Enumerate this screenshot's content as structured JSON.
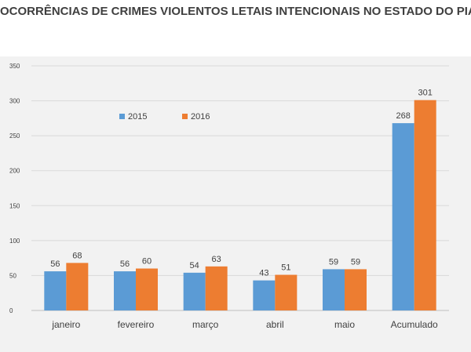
{
  "colors": {
    "series_2015": "#5b9bd5",
    "series_2016": "#ed7d31",
    "grid": "#d9d9d9",
    "background": "#f2f2f2"
  },
  "chart_data": {
    "type": "bar",
    "title": "OCORRÊNCIAS DE CRIMES VIOLENTOS LETAIS INTENCIONAIS NO ESTADO DO PIAUÍ",
    "xlabel": "",
    "ylabel": "",
    "ylim": [
      0,
      350
    ],
    "yticks": [
      0,
      50,
      100,
      150,
      200,
      250,
      300,
      350
    ],
    "grid": true,
    "legend": "top-left",
    "categories": [
      "janeiro",
      "fevereiro",
      "março",
      "abril",
      "maio",
      "Acumulado"
    ],
    "series": [
      {
        "name": "2015",
        "values": [
          56,
          56,
          54,
          43,
          59,
          268
        ]
      },
      {
        "name": "2016",
        "values": [
          68,
          60,
          63,
          51,
          59,
          301
        ]
      }
    ]
  }
}
